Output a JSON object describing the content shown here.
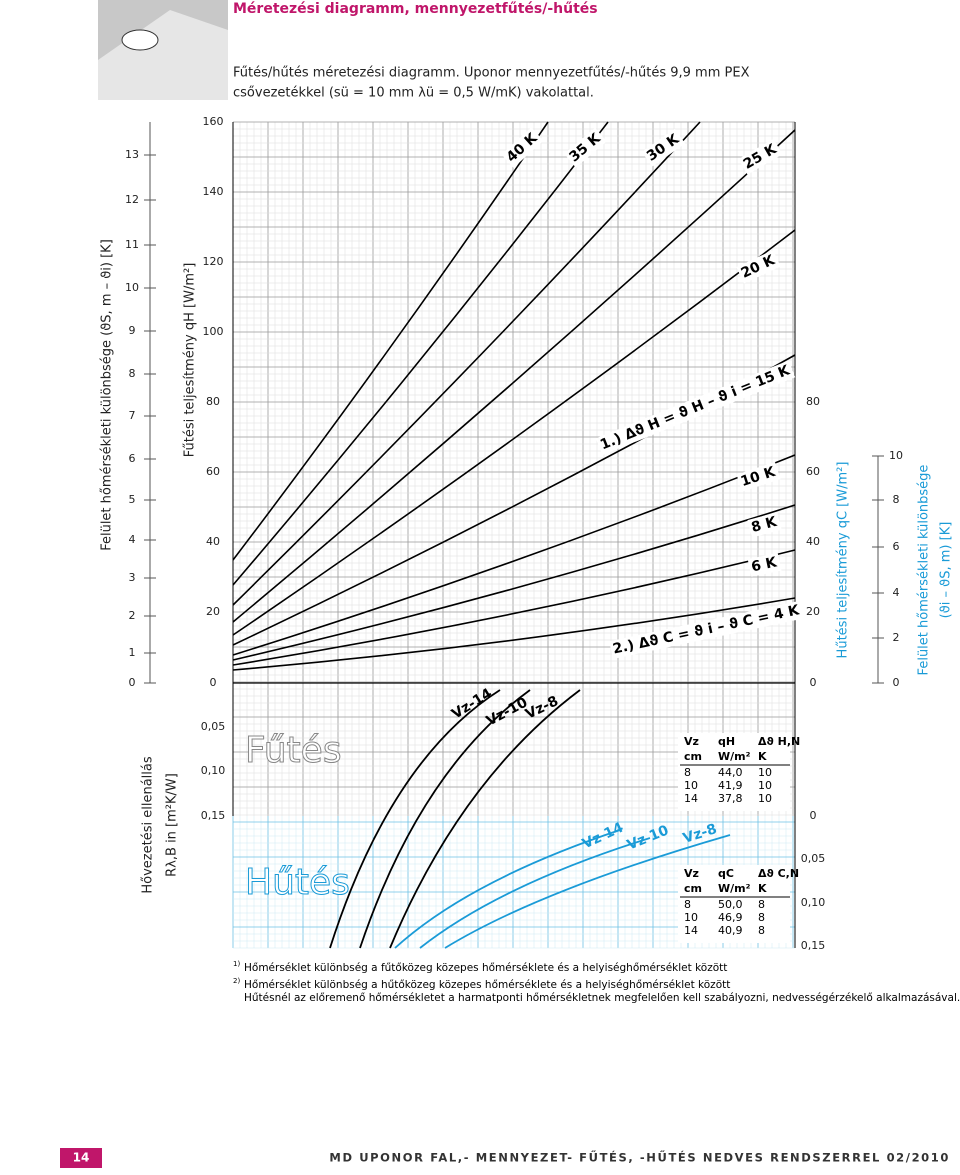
{
  "header": {
    "title": "Méretezési diagramm, mennyezetfűtés/-hűtés"
  },
  "caption": {
    "line1": "Fűtés/hűtés méretezési diagramm. Uponor mennyezetfűtés/-hűtés 9,9 mm PEX",
    "line2": "csővezetékkel (sü = 10 mm λü = 0,5 W/mK) vakolattal."
  },
  "axes": {
    "left_temp": {
      "label": "Felület hőmérsékleti különbsége (ϑS, m – ϑi) [K]",
      "ticks": [
        "13",
        "12",
        "11",
        "10",
        "9",
        "8",
        "7",
        "6",
        "5",
        "4",
        "3",
        "2",
        "1",
        "0"
      ]
    },
    "left_qh": {
      "label": "Fűtési teljesítmény qH [W/m²]",
      "ticks": [
        "160",
        "140",
        "120",
        "100",
        "80",
        "60",
        "40",
        "20",
        "0"
      ]
    },
    "left_r": {
      "label1": "Hővezetési ellenállás",
      "label2": "Rλ,B in [m²K/W]",
      "ticks": [
        "0,05",
        "0,10",
        "0,15"
      ]
    },
    "right_qc": {
      "label": "Hűtési teljesítmény qC [W/m²]",
      "ticks": [
        "80",
        "60",
        "40",
        "20",
        "0"
      ]
    },
    "right_r": {
      "ticks": [
        "0",
        "0,05",
        "0,10",
        "0,15"
      ]
    },
    "right_temp": {
      "label1": "Felület hőmérsékleti különbsége",
      "label2": "(ϑi – ϑS, m) [K]",
      "ticks": [
        "10",
        "8",
        "6",
        "4",
        "2",
        "0"
      ]
    }
  },
  "lines": [
    "40 K",
    "35 K",
    "30 K",
    "25 K",
    "20 K",
    "1.) Δϑ H = ϑ H – ϑ i = 15 K",
    "10 K",
    "8 K",
    "6 K",
    "2.) Δϑ C = ϑ i – ϑ C = 4 K"
  ],
  "heating_curves": [
    "Vz-14",
    "Vz-10",
    "Vz-8"
  ],
  "cooling_curves": [
    "Vz 14",
    "Vz 10",
    "Vz-8"
  ],
  "regions": {
    "heating": "Fűtés",
    "cooling": "Hűtés"
  },
  "tables": {
    "heating": {
      "header": [
        [
          "Vz",
          "qH",
          "Δϑ H,N"
        ],
        [
          "cm",
          "W/m²",
          "K"
        ]
      ],
      "rows": [
        [
          "8",
          "44,0",
          "10"
        ],
        [
          "10",
          "41,9",
          "10"
        ],
        [
          "14",
          "37,8",
          "10"
        ]
      ]
    },
    "cooling": {
      "header": [
        [
          "Vz",
          "qC",
          "Δϑ C,N"
        ],
        [
          "cm",
          "W/m²",
          "K"
        ]
      ],
      "rows": [
        [
          "8",
          "50,0",
          "8"
        ],
        [
          "10",
          "46,9",
          "8"
        ],
        [
          "14",
          "40,9",
          "8"
        ]
      ]
    }
  },
  "footnotes": [
    {
      "mark": "1)",
      "text": "Hőmérséklet különbség a fűtőközeg közepes hőmérséklete és a helyiséghőmérséklet között"
    },
    {
      "mark": "2)",
      "text": "Hőmérséklet különbség a hűtőközeg közepes hőmérséklete és a helyiséghőmérséklet között"
    },
    {
      "text": "Hűtésnél az előremenő hőmérsékletet a harmatponti hőmérsékletnek megfelelően kell szabályozni, nedvességérzékelő alkalmazásával."
    }
  ],
  "footer": {
    "page": "14",
    "title": "MD UPONOR FAL,- MENNYEZET- FŰTÉS, -HŰTÉS NEDVES RENDSZERREL 02/2010"
  }
}
